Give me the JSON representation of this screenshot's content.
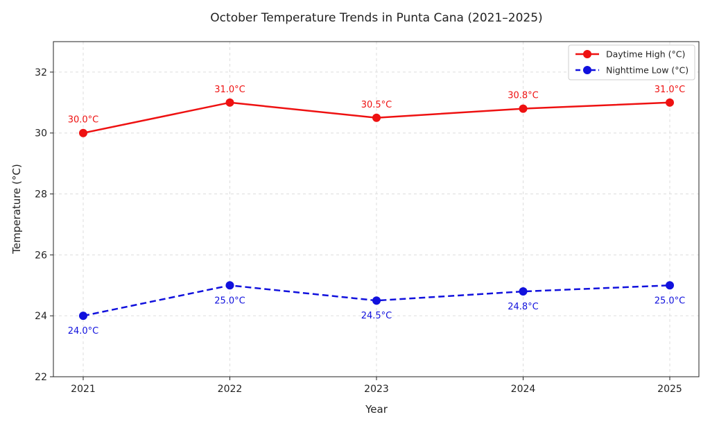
{
  "chart_data": {
    "type": "line",
    "title": "October Temperature Trends in Punta Cana (2021–2025)",
    "xlabel": "Year",
    "ylabel": "Temperature (°C)",
    "categories": [
      "2021",
      "2022",
      "2023",
      "2024",
      "2025"
    ],
    "yticks": [
      "22",
      "24",
      "26",
      "28",
      "30",
      "32"
    ],
    "ylim": [
      22,
      33
    ],
    "grid": true,
    "legend_position": "top-right",
    "series": [
      {
        "name": "Daytime High (°C)",
        "values": [
          30.0,
          31.0,
          30.5,
          30.8,
          31.0
        ],
        "labels": [
          "30.0°C",
          "31.0°C",
          "30.5°C",
          "30.8°C",
          "31.0°C"
        ],
        "color": "#ee1111",
        "style": "solid",
        "label_placement": "above"
      },
      {
        "name": "Nighttime Low (°C)",
        "values": [
          24.0,
          25.0,
          24.5,
          24.8,
          25.0
        ],
        "labels": [
          "24.0°C",
          "25.0°C",
          "24.5°C",
          "24.8°C",
          "25.0°C"
        ],
        "color": "#1111dd",
        "style": "dashed",
        "label_placement": "below"
      }
    ]
  }
}
